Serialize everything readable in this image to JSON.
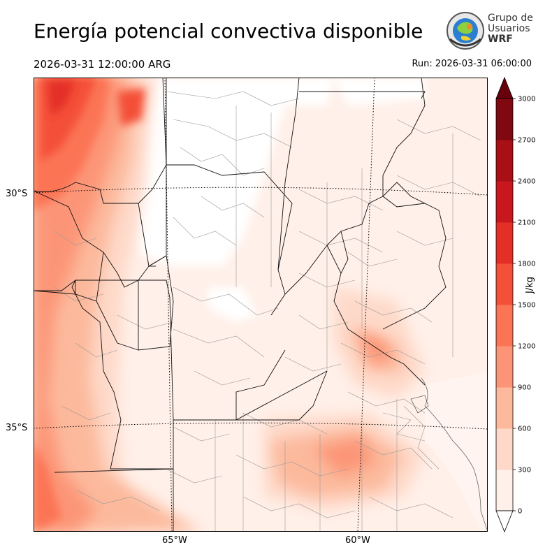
{
  "title": "Energía potencial convectiva disponible",
  "valid_time": "2026-03-31 12:00:00 ARG",
  "run_time": "Run: 2026-03-31 06:00:00",
  "logo": {
    "line1": "Grupo de",
    "line2": "Usuarios",
    "line3": "WRF"
  },
  "map": {
    "lat_labels": [
      "30°S",
      "35°S"
    ],
    "lon_labels": [
      "65°W",
      "60°W"
    ]
  },
  "colorbar": {
    "label": "J/kg",
    "ticks": [
      "0",
      "300",
      "600",
      "900",
      "1200",
      "1500",
      "1800",
      "2100",
      "2400",
      "2700",
      "3000"
    ],
    "colors": [
      "#fff0e9",
      "#fed9c9",
      "#fcb99c",
      "#fc9577",
      "#fb7555",
      "#f44f39",
      "#e32f26",
      "#c9181d",
      "#a91016",
      "#800811"
    ],
    "over_color": "#67000d",
    "under_color": "#ffffff"
  }
}
